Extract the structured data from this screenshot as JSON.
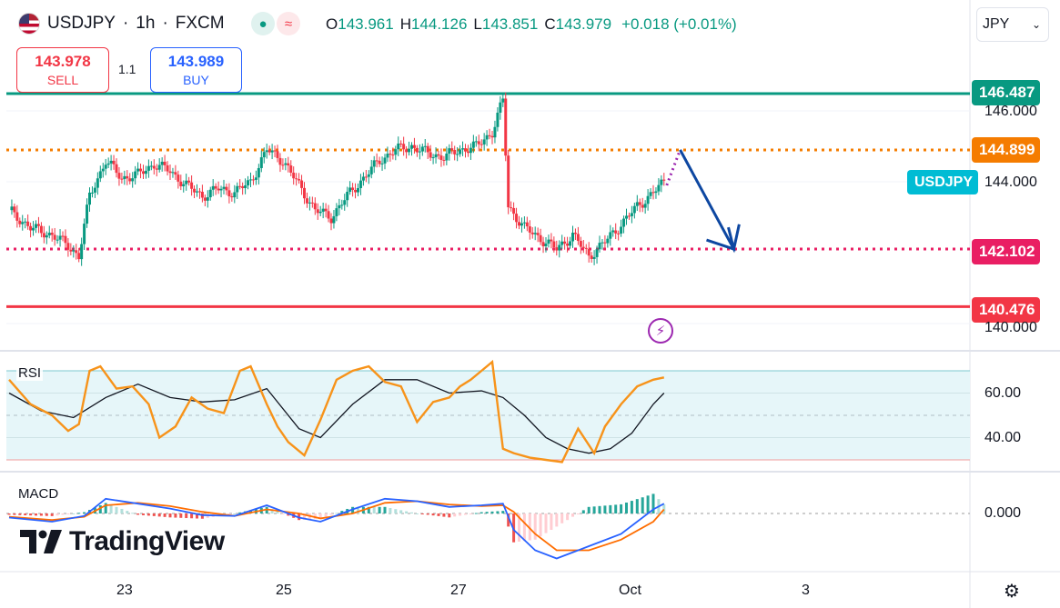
{
  "header": {
    "symbol": "USDJPY",
    "sep1": "·",
    "interval": "1h",
    "sep2": "·",
    "exchange": "FXCM",
    "open_label": "O",
    "open": "143.961",
    "high_label": "H",
    "high": "144.126",
    "low_label": "L",
    "low": "143.851",
    "close_label": "C",
    "close": "143.979",
    "change": "+0.018 (+0.01%)"
  },
  "trade": {
    "sell_price": "143.978",
    "sell_label": "SELL",
    "spread": "1.1",
    "buy_price": "143.989",
    "buy_label": "BUY"
  },
  "currency_select": {
    "value": "JPY",
    "icon": "chevron-down-icon"
  },
  "price_tags": {
    "resistance_top": "146.487",
    "resistance": "144.899",
    "symbol_tag": "USDJPY",
    "support": "142.102",
    "support_low": "140.476"
  },
  "colors": {
    "teal": "#089981",
    "orange": "#f57c00",
    "pink": "#e91e63",
    "red": "#f23645",
    "cyan": "#00bcd4",
    "arrow": "#0d47a1",
    "rsi_line": "#f7931a",
    "macd_line": "#2962ff"
  },
  "logo_text": "TradingView",
  "panes": {
    "rsi_label": "RSI",
    "macd_label": "MACD"
  },
  "chart_data": {
    "type": "candlestick",
    "title": "USDJPY · 1h · FXCM",
    "y_ticks": [
      "146.000",
      "144.000",
      "140.000"
    ],
    "x_ticks": [
      "23",
      "25",
      "27",
      "Oct",
      "3"
    ],
    "ylim": [
      139.5,
      147.2
    ],
    "horizontal_levels": [
      {
        "value": 146.487,
        "style": "solid",
        "color": "#089981"
      },
      {
        "value": 144.899,
        "style": "dotted",
        "color": "#f57c00"
      },
      {
        "value": 142.102,
        "style": "dotted",
        "color": "#e91e63"
      },
      {
        "value": 140.476,
        "style": "solid",
        "color": "#f23645"
      }
    ],
    "last_price": 143.979,
    "close_path": [
      [
        0,
        143.2
      ],
      [
        4,
        142.7
      ],
      [
        8,
        142.5
      ],
      [
        11,
        142.2
      ],
      [
        13,
        141.9
      ],
      [
        15,
        143.6
      ],
      [
        18,
        144.6
      ],
      [
        21,
        144.1
      ],
      [
        24,
        144.2
      ],
      [
        27,
        144.5
      ],
      [
        30,
        144.3
      ],
      [
        33,
        143.9
      ],
      [
        36,
        143.6
      ],
      [
        39,
        143.8
      ],
      [
        42,
        143.7
      ],
      [
        45,
        144.0
      ],
      [
        48,
        144.9
      ],
      [
        51,
        144.6
      ],
      [
        54,
        143.9
      ],
      [
        57,
        143.2
      ],
      [
        60,
        143.0
      ],
      [
        63,
        143.6
      ],
      [
        66,
        144.1
      ],
      [
        69,
        144.6
      ],
      [
        72,
        144.9
      ],
      [
        75,
        145.0
      ],
      [
        78,
        144.8
      ],
      [
        81,
        144.7
      ],
      [
        84,
        144.9
      ],
      [
        87,
        145.0
      ],
      [
        90,
        145.4
      ],
      [
        92,
        146.3
      ],
      [
        93,
        143.3
      ],
      [
        96,
        142.7
      ],
      [
        99,
        142.4
      ],
      [
        102,
        142.1
      ],
      [
        105,
        142.5
      ],
      [
        108,
        141.9
      ],
      [
        111,
        142.3
      ],
      [
        114,
        142.8
      ],
      [
        117,
        143.3
      ],
      [
        120,
        143.7
      ],
      [
        122,
        143.98
      ]
    ],
    "projection": {
      "from": [
        125,
        144.9
      ],
      "to": [
        135,
        142.1
      ],
      "to_bounce": [
        136,
        142.8
      ]
    },
    "rsi": {
      "y_ticks": [
        "60.00",
        "40.00"
      ],
      "upper_band": 70,
      "lower_band": 30,
      "mid": 50,
      "rsi_path": [
        [
          0,
          66
        ],
        [
          4,
          55
        ],
        [
          8,
          50
        ],
        [
          11,
          43
        ],
        [
          13,
          46
        ],
        [
          15,
          70
        ],
        [
          17,
          72
        ],
        [
          20,
          62
        ],
        [
          23,
          63
        ],
        [
          26,
          55
        ],
        [
          28,
          40
        ],
        [
          31,
          45
        ],
        [
          34,
          58
        ],
        [
          37,
          53
        ],
        [
          40,
          51
        ],
        [
          43,
          70
        ],
        [
          45,
          72
        ],
        [
          48,
          55
        ],
        [
          50,
          45
        ],
        [
          52,
          38
        ],
        [
          55,
          32
        ],
        [
          58,
          48
        ],
        [
          61,
          66
        ],
        [
          64,
          70
        ],
        [
          67,
          72
        ],
        [
          70,
          65
        ],
        [
          73,
          63
        ],
        [
          76,
          47
        ],
        [
          79,
          56
        ],
        [
          82,
          58
        ],
        [
          84,
          63
        ],
        [
          86,
          66
        ],
        [
          88,
          70
        ],
        [
          90,
          74
        ],
        [
          92,
          35
        ],
        [
          94,
          33
        ],
        [
          97,
          31
        ],
        [
          100,
          30
        ],
        [
          103,
          29
        ],
        [
          106,
          44
        ],
        [
          109,
          33
        ],
        [
          111,
          45
        ],
        [
          114,
          55
        ],
        [
          117,
          63
        ],
        [
          120,
          66
        ],
        [
          122,
          67
        ]
      ],
      "signal_path": [
        [
          0,
          60
        ],
        [
          6,
          52
        ],
        [
          12,
          49
        ],
        [
          18,
          58
        ],
        [
          24,
          64
        ],
        [
          30,
          58
        ],
        [
          36,
          56
        ],
        [
          42,
          57
        ],
        [
          48,
          62
        ],
        [
          54,
          44
        ],
        [
          58,
          40
        ],
        [
          64,
          55
        ],
        [
          70,
          66
        ],
        [
          76,
          66
        ],
        [
          82,
          60
        ],
        [
          88,
          61
        ],
        [
          92,
          58
        ],
        [
          96,
          50
        ],
        [
          100,
          40
        ],
        [
          104,
          35
        ],
        [
          108,
          33
        ],
        [
          112,
          35
        ],
        [
          116,
          42
        ],
        [
          120,
          55
        ],
        [
          122,
          60
        ]
      ]
    },
    "macd": {
      "y_ticks": [
        "0.000"
      ],
      "macd_path": [
        [
          0,
          -0.05
        ],
        [
          8,
          -0.1
        ],
        [
          14,
          -0.03
        ],
        [
          18,
          0.18
        ],
        [
          24,
          0.12
        ],
        [
          30,
          0.06
        ],
        [
          36,
          -0.02
        ],
        [
          42,
          -0.03
        ],
        [
          48,
          0.1
        ],
        [
          54,
          -0.05
        ],
        [
          58,
          -0.1
        ],
        [
          64,
          0.05
        ],
        [
          70,
          0.18
        ],
        [
          76,
          0.15
        ],
        [
          82,
          0.08
        ],
        [
          88,
          0.1
        ],
        [
          92,
          0.12
        ],
        [
          94,
          -0.2
        ],
        [
          98,
          -0.45
        ],
        [
          102,
          -0.55
        ],
        [
          108,
          -0.4
        ],
        [
          114,
          -0.25
        ],
        [
          120,
          0.05
        ],
        [
          122,
          0.12
        ]
      ],
      "signal_path": [
        [
          0,
          -0.04
        ],
        [
          8,
          -0.08
        ],
        [
          14,
          -0.04
        ],
        [
          18,
          0.1
        ],
        [
          24,
          0.13
        ],
        [
          30,
          0.09
        ],
        [
          36,
          0.02
        ],
        [
          42,
          -0.03
        ],
        [
          48,
          0.05
        ],
        [
          54,
          0.0
        ],
        [
          58,
          -0.06
        ],
        [
          64,
          0.0
        ],
        [
          70,
          0.13
        ],
        [
          76,
          0.15
        ],
        [
          82,
          0.11
        ],
        [
          88,
          0.09
        ],
        [
          92,
          0.1
        ],
        [
          94,
          0.02
        ],
        [
          98,
          -0.25
        ],
        [
          102,
          -0.45
        ],
        [
          108,
          -0.45
        ],
        [
          114,
          -0.32
        ],
        [
          120,
          -0.1
        ],
        [
          122,
          0.05
        ]
      ]
    }
  }
}
